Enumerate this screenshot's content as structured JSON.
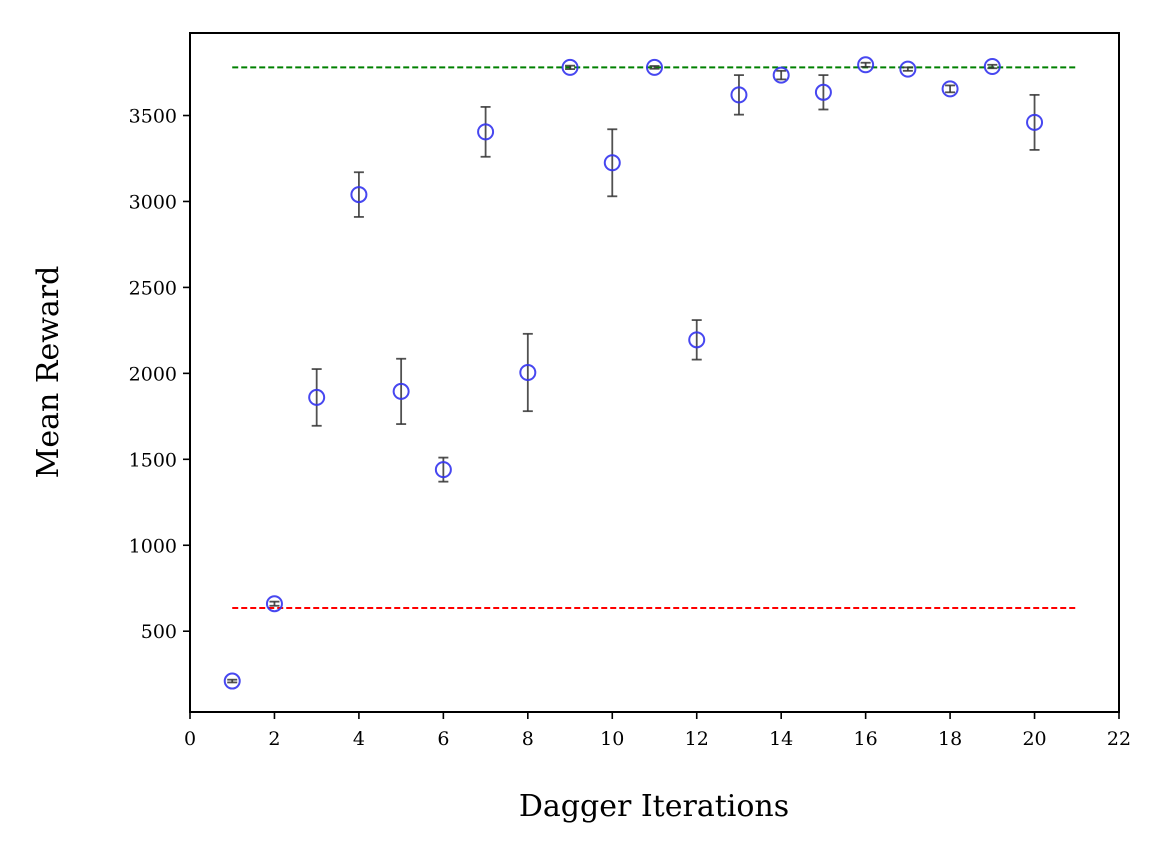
{
  "chart_data": {
    "type": "scatter",
    "title": "",
    "xlabel": "Dagger Iterations",
    "ylabel": "Mean Reward",
    "xlim": [
      0,
      22
    ],
    "ylim": [
      30,
      3980
    ],
    "xticks": [
      0,
      2,
      4,
      6,
      8,
      10,
      12,
      14,
      16,
      18,
      20,
      22
    ],
    "yticks": [
      500,
      1000,
      1500,
      2000,
      2500,
      3000,
      3500
    ],
    "grid": false,
    "series": [
      {
        "marker": "open-circle",
        "color": "#3333ee",
        "error_bar_color": "#333333",
        "x": [
          1,
          2,
          3,
          4,
          5,
          6,
          7,
          8,
          9,
          10,
          11,
          12,
          13,
          14,
          15,
          16,
          17,
          18,
          19,
          20
        ],
        "y": [
          210,
          660,
          1860,
          3040,
          1895,
          1440,
          3405,
          2005,
          3780,
          3225,
          3780,
          2195,
          3620,
          3735,
          3635,
          3795,
          3770,
          3655,
          3785,
          3460
        ],
        "yerr": [
          8,
          12,
          165,
          130,
          190,
          70,
          145,
          225,
          10,
          195,
          8,
          115,
          115,
          25,
          100,
          12,
          10,
          20,
          10,
          160
        ]
      }
    ],
    "reference_lines": [
      {
        "y": 3780,
        "color": "#008000",
        "style": "dashed",
        "x_range": [
          1,
          21
        ]
      },
      {
        "y": 635,
        "color": "#ff0000",
        "style": "dashed",
        "x_range": [
          1,
          21
        ]
      }
    ]
  }
}
